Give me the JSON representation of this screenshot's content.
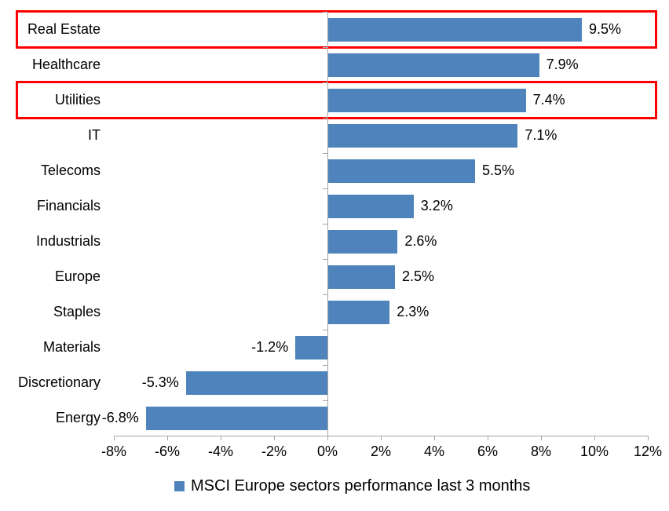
{
  "chart_data": {
    "type": "bar",
    "orientation": "horizontal",
    "title": "",
    "categories": [
      "Real Estate",
      "Healthcare",
      "Utilities",
      "IT",
      "Telecoms",
      "Financials",
      "Industrials",
      "Europe",
      "Staples",
      "Materials",
      "Discretionary",
      "Energy"
    ],
    "values": [
      9.5,
      7.9,
      7.4,
      7.1,
      5.5,
      3.2,
      2.6,
      2.5,
      2.3,
      -1.2,
      -5.3,
      -6.8
    ],
    "value_labels": [
      "9.5%",
      "7.9%",
      "7.4%",
      "7.1%",
      "5.5%",
      "3.2%",
      "2.6%",
      "2.5%",
      "2.3%",
      "-1.2%",
      "-5.3%",
      "-6.8%"
    ],
    "series_name": "MSCI Europe sectors performance last 3 months",
    "x_tick_values": [
      -8,
      -6,
      -4,
      -2,
      0,
      2,
      4,
      6,
      8,
      10,
      12
    ],
    "x_tick_labels": [
      "-8%",
      "-6%",
      "-4%",
      "-2%",
      "0%",
      "2%",
      "4%",
      "6%",
      "8%",
      "10%",
      "12%"
    ],
    "xlim": [
      -8,
      12
    ],
    "grid": "off",
    "legend_position": "bottom",
    "bar_color": "#4E84BB",
    "axis_color": "#A6A6A6",
    "highlight_color": "#FF0000",
    "highlighted_categories": [
      "Real Estate",
      "Utilities"
    ]
  },
  "legend": {
    "label": "MSCI Europe sectors performance last 3 months"
  }
}
